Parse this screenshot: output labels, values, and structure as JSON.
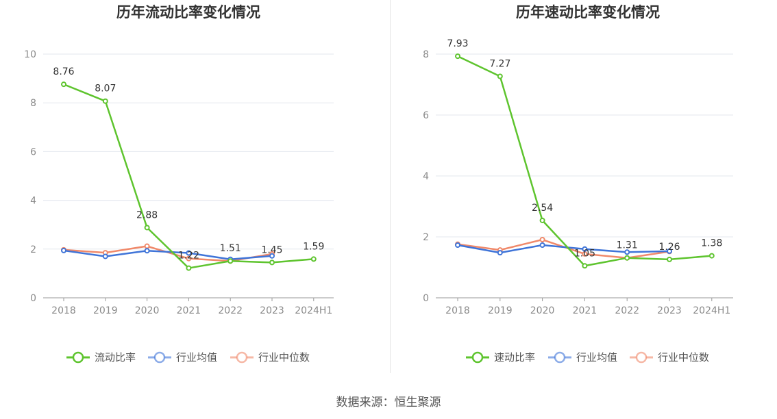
{
  "source_text": "数据来源：恒生聚源",
  "colors": {
    "primary": "#5ec42e",
    "average": "#3f74d8",
    "median": "#f0896a",
    "grid": "#e3e7ee",
    "axis": "#999999"
  },
  "chart_data": [
    {
      "type": "line",
      "title": "历年流动比率变化情况",
      "categories": [
        "2018",
        "2019",
        "2020",
        "2021",
        "2022",
        "2023",
        "2024H1"
      ],
      "ylim": [
        0,
        10
      ],
      "yticks": [
        0,
        2,
        4,
        6,
        8,
        10
      ],
      "grid": true,
      "legend": "bottom",
      "series": [
        {
          "name": "流动比率",
          "values": [
            8.76,
            8.07,
            2.88,
            1.22,
            1.51,
            1.45,
            1.59
          ],
          "labels": [
            "8.76",
            "8.07",
            "2.88",
            "1.22",
            "1.51",
            "1.45",
            "1.59"
          ]
        },
        {
          "name": "行业均值",
          "values": [
            1.94,
            1.7,
            1.93,
            1.84,
            1.58,
            1.72,
            null
          ]
        },
        {
          "name": "行业中位数",
          "values": [
            1.97,
            1.85,
            2.12,
            1.61,
            1.51,
            1.8,
            null
          ]
        }
      ]
    },
    {
      "type": "line",
      "title": "历年速动比率变化情况",
      "categories": [
        "2018",
        "2019",
        "2020",
        "2021",
        "2022",
        "2023",
        "2024H1"
      ],
      "ylim": [
        0,
        8
      ],
      "yticks": [
        0,
        2,
        4,
        6,
        8
      ],
      "grid": true,
      "legend": "bottom",
      "series": [
        {
          "name": "速动比率",
          "values": [
            7.93,
            7.27,
            2.54,
            1.05,
            1.31,
            1.26,
            1.38
          ],
          "labels": [
            "7.93",
            "7.27",
            "2.54",
            "1.05",
            "1.31",
            "1.26",
            "1.38"
          ]
        },
        {
          "name": "行业均值",
          "values": [
            1.73,
            1.48,
            1.73,
            1.6,
            1.5,
            1.53,
            null
          ]
        },
        {
          "name": "行业中位数",
          "values": [
            1.76,
            1.57,
            1.91,
            1.44,
            1.31,
            1.52,
            null
          ]
        }
      ]
    }
  ]
}
